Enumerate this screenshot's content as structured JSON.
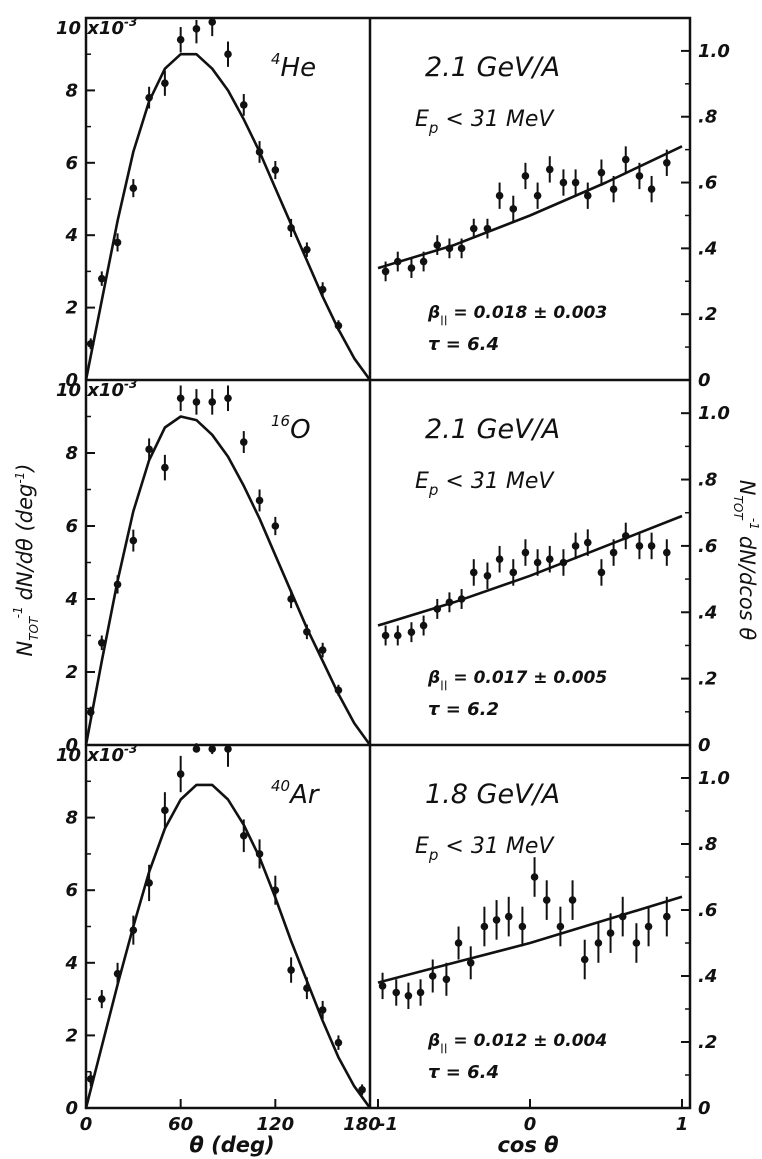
{
  "figure": {
    "y_axis_left_label": "N",
    "y_axis_left_sub": "TOT",
    "y_axis_left_sup": "-1",
    "y_axis_left_rest": "dN/dθ (deg",
    "y_axis_left_rest_sup": "-1",
    "y_axis_left_close": ")",
    "y_axis_right_label": "N",
    "y_axis_right_sub": "TOT",
    "y_axis_right_sup": "-1",
    "y_axis_right_rest": "dN/dcos θ",
    "x_axis_left_label": "θ (deg)",
    "x_axis_right_label": "cos θ",
    "left_y_multiplier": "10 x10",
    "left_y_multiplier_exp": "-3"
  },
  "chart_data": [
    {
      "type": "scatter",
      "panel": "He-theta",
      "target_label": "4",
      "target_symbol": "He",
      "xlim": [
        0,
        180
      ],
      "ylim": [
        0,
        10
      ],
      "x_ticks": [
        "0",
        "60",
        "120",
        "180"
      ],
      "y_ticks": [
        "0",
        "2",
        "4",
        "6",
        "8",
        "10"
      ],
      "x": [
        3,
        10,
        20,
        30,
        40,
        50,
        60,
        70,
        80,
        90,
        100,
        110,
        120,
        130,
        140,
        150,
        160
      ],
      "y": [
        1.0,
        2.8,
        3.8,
        5.3,
        7.8,
        8.2,
        9.4,
        9.7,
        9.9,
        9.0,
        7.6,
        6.3,
        5.8,
        4.2,
        3.6,
        2.5,
        1.5
      ],
      "yerr": [
        0.15,
        0.2,
        0.25,
        0.25,
        0.3,
        0.35,
        0.35,
        0.4,
        0.4,
        0.35,
        0.3,
        0.3,
        0.25,
        0.25,
        0.2,
        0.2,
        0.15
      ],
      "fit_x": [
        0,
        10,
        20,
        30,
        40,
        50,
        60,
        70,
        80,
        90,
        100,
        110,
        120,
        130,
        140,
        150,
        160,
        170,
        180
      ],
      "fit_y": [
        0,
        2.2,
        4.4,
        6.3,
        7.7,
        8.6,
        9.0,
        9.0,
        8.6,
        8.0,
        7.2,
        6.3,
        5.3,
        4.3,
        3.3,
        2.3,
        1.4,
        0.6,
        0
      ]
    },
    {
      "type": "scatter",
      "panel": "He-cos",
      "title": "2.1  GeV/A",
      "cut_label": "E",
      "cut_sub": "p",
      "cut_rest": " < 31  MeV",
      "beta_label": "β",
      "beta_sub": "||",
      "beta_value": " = 0.018 ± 0.003",
      "tau_label": "τ =  6.4",
      "xlim": [
        -1,
        1
      ],
      "ylim": [
        0,
        1.1
      ],
      "y_ticks": [
        "0",
        ".2",
        ".4",
        ".6",
        ".8",
        "1.0"
      ],
      "x": [
        -0.95,
        -0.87,
        -0.78,
        -0.7,
        -0.61,
        -0.53,
        -0.45,
        -0.37,
        -0.28,
        -0.2,
        -0.11,
        -0.03,
        0.05,
        0.13,
        0.22,
        0.3,
        0.38,
        0.47,
        0.55,
        0.63,
        0.72,
        0.8,
        0.9
      ],
      "y": [
        0.33,
        0.36,
        0.34,
        0.36,
        0.41,
        0.4,
        0.4,
        0.46,
        0.46,
        0.56,
        0.52,
        0.62,
        0.56,
        0.64,
        0.6,
        0.6,
        0.56,
        0.63,
        0.58,
        0.67,
        0.62,
        0.58,
        0.66
      ],
      "yerr": [
        0.03,
        0.03,
        0.03,
        0.03,
        0.03,
        0.03,
        0.03,
        0.03,
        0.03,
        0.04,
        0.04,
        0.04,
        0.04,
        0.04,
        0.04,
        0.04,
        0.04,
        0.04,
        0.04,
        0.04,
        0.04,
        0.04,
        0.04
      ],
      "fit_x": [
        -1,
        -0.5,
        0,
        0.5,
        1
      ],
      "fit_y": [
        0.34,
        0.41,
        0.5,
        0.6,
        0.71
      ]
    },
    {
      "type": "scatter",
      "panel": "O-theta",
      "target_label": "16",
      "target_symbol": "O",
      "xlim": [
        0,
        180
      ],
      "ylim": [
        0,
        10
      ],
      "x_ticks": [
        "0",
        "60",
        "120",
        "180"
      ],
      "y_ticks": [
        "0",
        "2",
        "4",
        "6",
        "8",
        "10"
      ],
      "x": [
        3,
        10,
        20,
        30,
        40,
        50,
        60,
        70,
        80,
        90,
        100,
        110,
        120,
        130,
        140,
        150,
        160
      ],
      "y": [
        0.9,
        2.8,
        4.4,
        5.6,
        8.1,
        7.6,
        9.5,
        9.4,
        9.4,
        9.5,
        8.3,
        6.7,
        6.0,
        4.0,
        3.1,
        2.6,
        1.5
      ],
      "yerr": [
        0.15,
        0.2,
        0.25,
        0.3,
        0.3,
        0.35,
        0.35,
        0.35,
        0.35,
        0.35,
        0.3,
        0.3,
        0.25,
        0.25,
        0.2,
        0.2,
        0.15
      ],
      "fit_x": [
        0,
        10,
        20,
        30,
        40,
        50,
        60,
        70,
        80,
        90,
        100,
        110,
        120,
        130,
        140,
        150,
        160,
        170,
        180
      ],
      "fit_y": [
        0,
        2.3,
        4.5,
        6.4,
        7.8,
        8.7,
        9.0,
        8.9,
        8.5,
        7.9,
        7.1,
        6.2,
        5.2,
        4.2,
        3.2,
        2.3,
        1.4,
        0.6,
        0
      ]
    },
    {
      "type": "scatter",
      "panel": "O-cos",
      "title": "2.1  GeV/A",
      "cut_label": "E",
      "cut_sub": "p",
      "cut_rest": " < 31  MeV",
      "beta_label": "β",
      "beta_sub": "||",
      "beta_value": " = 0.017 ± 0.005",
      "tau_label": "τ =  6.2",
      "xlim": [
        -1,
        1
      ],
      "ylim": [
        0,
        1.1
      ],
      "y_ticks": [
        "0",
        ".2",
        ".4",
        ".6",
        ".8",
        "1.0"
      ],
      "x": [
        -0.95,
        -0.87,
        -0.78,
        -0.7,
        -0.61,
        -0.53,
        -0.45,
        -0.37,
        -0.28,
        -0.2,
        -0.11,
        -0.03,
        0.05,
        0.13,
        0.22,
        0.3,
        0.38,
        0.47,
        0.55,
        0.63,
        0.72,
        0.8,
        0.9
      ],
      "y": [
        0.33,
        0.33,
        0.34,
        0.36,
        0.41,
        0.43,
        0.44,
        0.52,
        0.51,
        0.56,
        0.52,
        0.58,
        0.55,
        0.56,
        0.55,
        0.6,
        0.61,
        0.52,
        0.58,
        0.63,
        0.6,
        0.6,
        0.58
      ],
      "yerr": [
        0.03,
        0.03,
        0.03,
        0.03,
        0.03,
        0.03,
        0.03,
        0.04,
        0.04,
        0.04,
        0.04,
        0.04,
        0.04,
        0.04,
        0.04,
        0.04,
        0.04,
        0.04,
        0.04,
        0.04,
        0.04,
        0.04,
        0.04
      ],
      "fit_x": [
        -1,
        -0.5,
        0,
        0.5,
        1
      ],
      "fit_y": [
        0.36,
        0.43,
        0.51,
        0.6,
        0.69
      ]
    },
    {
      "type": "scatter",
      "panel": "Ar-theta",
      "target_label": "40",
      "target_symbol": "Ar",
      "xlim": [
        0,
        180
      ],
      "ylim": [
        0,
        10
      ],
      "x_ticks": [
        "0",
        "60",
        "120",
        "180"
      ],
      "y_ticks": [
        "0",
        "2",
        "4",
        "6",
        "8",
        "10"
      ],
      "x": [
        3,
        10,
        20,
        30,
        40,
        50,
        60,
        70,
        80,
        90,
        100,
        110,
        120,
        130,
        140,
        150,
        160,
        175
      ],
      "y": [
        0.8,
        3.0,
        3.7,
        4.9,
        6.2,
        8.2,
        9.2,
        10.6,
        10.3,
        9.9,
        7.5,
        7.0,
        6.0,
        3.8,
        3.3,
        2.7,
        1.8,
        0.5
      ],
      "yerr": [
        0.2,
        0.25,
        0.3,
        0.4,
        0.5,
        0.5,
        0.5,
        0.55,
        0.55,
        0.5,
        0.45,
        0.4,
        0.4,
        0.35,
        0.3,
        0.25,
        0.2,
        0.15
      ],
      "fit_x": [
        0,
        10,
        20,
        30,
        40,
        50,
        60,
        70,
        80,
        90,
        100,
        110,
        120,
        130,
        140,
        150,
        160,
        170,
        180
      ],
      "fit_y": [
        0,
        1.7,
        3.4,
        5.0,
        6.5,
        7.7,
        8.5,
        8.9,
        8.9,
        8.5,
        7.8,
        6.9,
        5.8,
        4.6,
        3.5,
        2.4,
        1.4,
        0.6,
        0
      ]
    },
    {
      "type": "scatter",
      "panel": "Ar-cos",
      "title": "1.8  GeV/A",
      "cut_label": "E",
      "cut_sub": "p",
      "cut_rest": " < 31  MeV",
      "beta_label": "β",
      "beta_sub": "||",
      "beta_value": " = 0.012 ± 0.004",
      "tau_label": "τ =  6.4",
      "xlim": [
        -1,
        1
      ],
      "ylim": [
        0,
        1.1
      ],
      "x_ticks": [
        "-1",
        "0",
        "1"
      ],
      "y_ticks": [
        "0",
        ".2",
        ".4",
        ".6",
        ".8",
        "1.0"
      ],
      "x": [
        -0.97,
        -0.88,
        -0.8,
        -0.72,
        -0.64,
        -0.55,
        -0.47,
        -0.39,
        -0.3,
        -0.22,
        -0.14,
        -0.05,
        0.03,
        0.11,
        0.2,
        0.28,
        0.36,
        0.45,
        0.53,
        0.61,
        0.7,
        0.78,
        0.9
      ],
      "y": [
        0.37,
        0.35,
        0.34,
        0.35,
        0.4,
        0.39,
        0.5,
        0.44,
        0.55,
        0.57,
        0.58,
        0.55,
        0.7,
        0.63,
        0.55,
        0.63,
        0.45,
        0.5,
        0.53,
        0.58,
        0.5,
        0.55,
        0.58
      ],
      "yerr": [
        0.04,
        0.04,
        0.04,
        0.04,
        0.05,
        0.05,
        0.05,
        0.05,
        0.06,
        0.06,
        0.06,
        0.06,
        0.06,
        0.06,
        0.06,
        0.06,
        0.06,
        0.06,
        0.06,
        0.06,
        0.06,
        0.06,
        0.06
      ],
      "fit_x": [
        -1,
        -0.5,
        0,
        0.5,
        1
      ],
      "fit_y": [
        0.38,
        0.44,
        0.5,
        0.57,
        0.64
      ]
    }
  ]
}
